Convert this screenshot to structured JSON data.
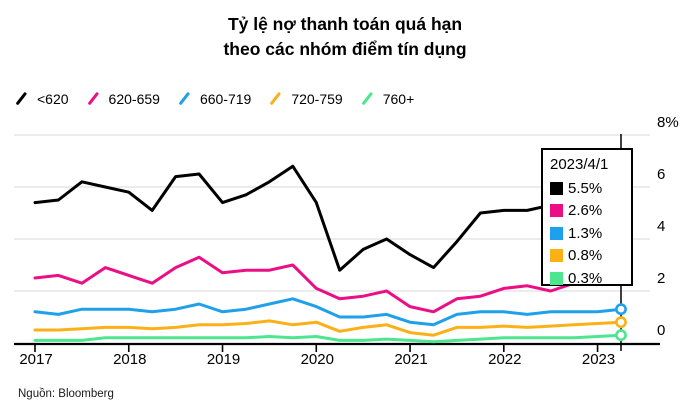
{
  "title": {
    "line1": "Tỷ lệ nợ thanh toán quá hạn",
    "line2": "theo các nhóm điểm tín dụng"
  },
  "source": "Nguồn: Bloomberg",
  "colors": {
    "black": "#000000",
    "pink": "#ec0e84",
    "blue": "#1fa0ea",
    "yellow": "#fbb018",
    "green": "#4ce68f",
    "gridline": "#d9d9d9",
    "axis": "#000000",
    "tooltip_border": "#000000",
    "background": "#ffffff"
  },
  "tooltip": {
    "date": "2023/4/1",
    "rows": [
      {
        "series": "<620",
        "value": "5.5%",
        "color": "#000000"
      },
      {
        "series": "620-659",
        "value": "2.6%",
        "color": "#ec0e84"
      },
      {
        "series": "660-719",
        "value": "1.3%",
        "color": "#1fa0ea"
      },
      {
        "series": "720-759",
        "value": "0.8%",
        "color": "#fbb018"
      },
      {
        "series": "760+",
        "value": "0.3%",
        "color": "#4ce68f"
      }
    ]
  },
  "chart_data": {
    "type": "line",
    "title": "Tỷ lệ nợ thanh toán quá hạn theo các nhóm điểm tín dụng",
    "x_unit": "quarter",
    "x_range": "2017 Q1 – 2023 Q2",
    "x_year_tick_labels": [
      "2017",
      "2018",
      "2019",
      "2020",
      "2021",
      "2022",
      "2023"
    ],
    "x_year_tick_indices": [
      0,
      4,
      8,
      12,
      16,
      20,
      24
    ],
    "y_ticks": [
      0,
      2,
      4,
      6,
      8
    ],
    "y_top_tick_label": "8%",
    "ylim": [
      0,
      8
    ],
    "grid": "horizontal",
    "legend_position": "top-left",
    "hover_point": {
      "index": 25,
      "date": "2023/4/1"
    },
    "series": [
      {
        "name": "<620",
        "color": "#000000",
        "values": [
          5.4,
          5.5,
          6.2,
          6.0,
          5.8,
          5.1,
          6.4,
          6.5,
          5.4,
          5.7,
          6.2,
          6.8,
          5.4,
          2.8,
          3.6,
          4.0,
          3.4,
          2.9,
          3.9,
          5.0,
          5.1,
          5.1,
          5.3,
          5.4,
          5.4,
          5.5
        ]
      },
      {
        "name": "620-659",
        "color": "#ec0e84",
        "values": [
          2.5,
          2.6,
          2.3,
          2.9,
          2.6,
          2.3,
          2.9,
          3.3,
          2.7,
          2.8,
          2.8,
          3.0,
          2.1,
          1.7,
          1.8,
          2.0,
          1.4,
          1.2,
          1.7,
          1.8,
          2.1,
          2.2,
          2.0,
          2.3,
          2.4,
          2.6
        ]
      },
      {
        "name": "660-719",
        "color": "#1fa0ea",
        "values": [
          1.2,
          1.1,
          1.3,
          1.3,
          1.3,
          1.2,
          1.3,
          1.5,
          1.2,
          1.3,
          1.5,
          1.7,
          1.4,
          1.0,
          1.0,
          1.1,
          0.8,
          0.7,
          1.1,
          1.2,
          1.2,
          1.1,
          1.2,
          1.2,
          1.2,
          1.3
        ]
      },
      {
        "name": "720-759",
        "color": "#fbb018",
        "values": [
          0.5,
          0.5,
          0.55,
          0.6,
          0.6,
          0.55,
          0.6,
          0.7,
          0.7,
          0.75,
          0.85,
          0.7,
          0.8,
          0.45,
          0.6,
          0.7,
          0.4,
          0.3,
          0.6,
          0.6,
          0.65,
          0.6,
          0.65,
          0.7,
          0.75,
          0.8
        ]
      },
      {
        "name": "760+",
        "color": "#4ce68f",
        "values": [
          0.1,
          0.1,
          0.1,
          0.2,
          0.2,
          0.2,
          0.2,
          0.2,
          0.2,
          0.2,
          0.25,
          0.2,
          0.25,
          0.1,
          0.1,
          0.15,
          0.1,
          0.05,
          0.1,
          0.15,
          0.2,
          0.2,
          0.2,
          0.2,
          0.25,
          0.3
        ]
      }
    ]
  }
}
